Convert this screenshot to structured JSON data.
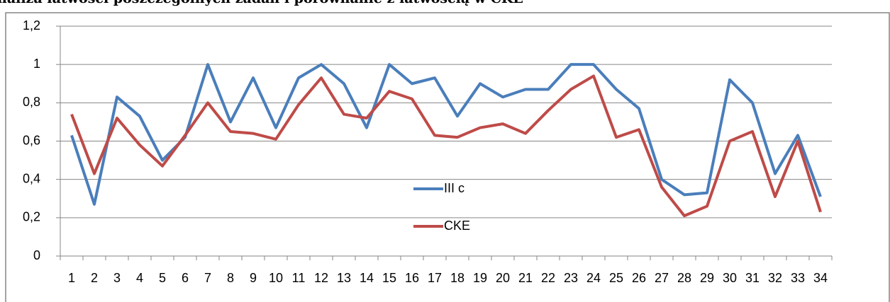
{
  "chart_data": {
    "type": "line",
    "title": "naliza łatwości poszczególnych zadań i porównanie z łatwością w CKE",
    "categories": [
      "1",
      "2",
      "3",
      "4",
      "5",
      "6",
      "7",
      "8",
      "9",
      "10",
      "11",
      "12",
      "13",
      "14",
      "15",
      "16",
      "17",
      "18",
      "19",
      "20",
      "21",
      "22",
      "23",
      "24",
      "25",
      "26",
      "27",
      "28",
      "29",
      "30",
      "31",
      "32",
      "33",
      "34"
    ],
    "series": [
      {
        "name": "III c",
        "color": "#4a7ebb",
        "values": [
          0.63,
          0.27,
          0.83,
          0.73,
          0.5,
          0.62,
          1.0,
          0.7,
          0.93,
          0.67,
          0.93,
          1.0,
          0.9,
          0.67,
          1.0,
          0.9,
          0.93,
          0.73,
          0.9,
          0.83,
          0.87,
          0.87,
          1.0,
          1.0,
          0.87,
          0.77,
          0.4,
          0.32,
          0.33,
          0.92,
          0.8,
          0.43,
          0.63,
          0.31
        ]
      },
      {
        "name": "CKE",
        "color": "#be4b48",
        "values": [
          0.74,
          0.43,
          0.72,
          0.58,
          0.47,
          0.63,
          0.8,
          0.65,
          0.64,
          0.61,
          0.79,
          0.93,
          0.74,
          0.72,
          0.86,
          0.82,
          0.63,
          0.62,
          0.67,
          0.69,
          0.64,
          0.76,
          0.87,
          0.94,
          0.62,
          0.66,
          0.36,
          0.21,
          0.26,
          0.6,
          0.65,
          0.31,
          0.6,
          0.23
        ]
      }
    ],
    "ylim": [
      0,
      1.2
    ],
    "yticks": [
      0,
      {
        "value": 0.2,
        "label": "0,2"
      },
      {
        "value": 0.4,
        "label": "0,4"
      },
      {
        "value": 0.6,
        "label": "0,6"
      },
      {
        "value": 0.8,
        "label": "0,8"
      },
      1,
      {
        "value": 1.2,
        "label": "1,2"
      }
    ],
    "grid": true,
    "legend_position": "center"
  }
}
